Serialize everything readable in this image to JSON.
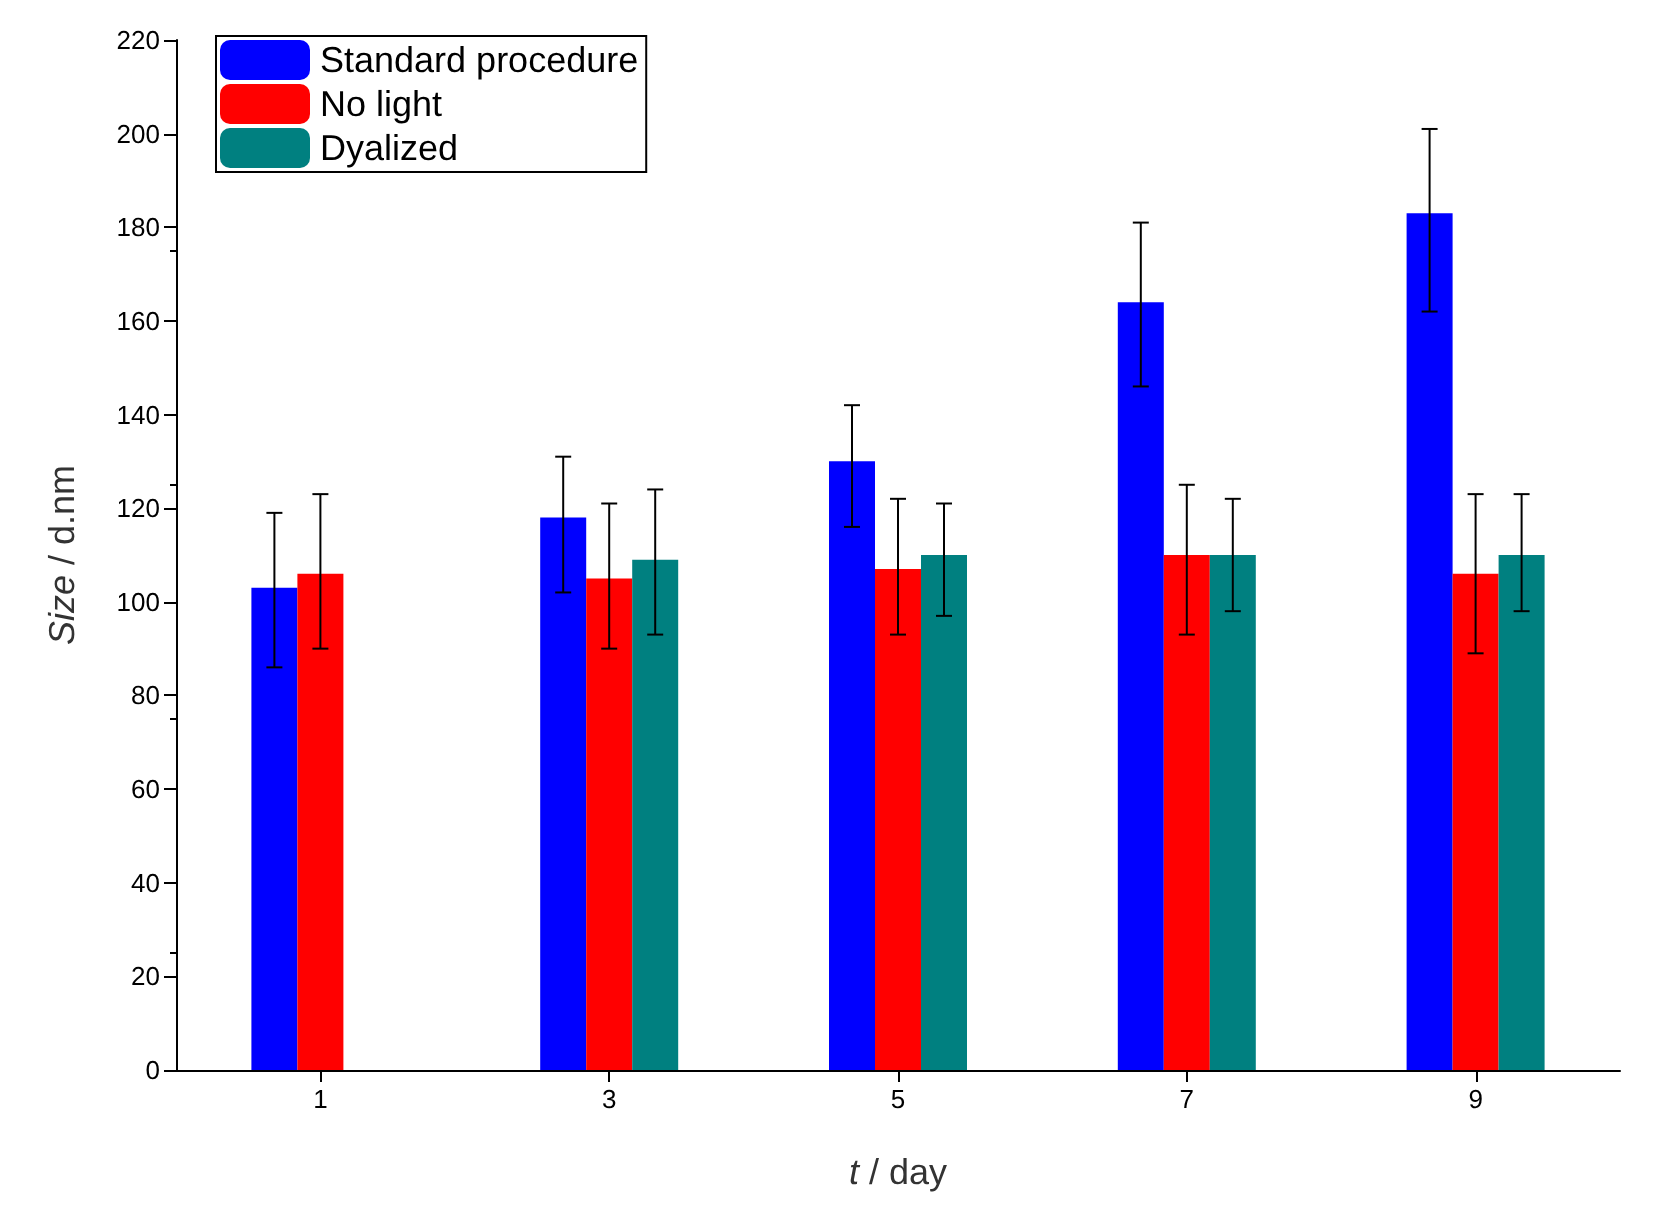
{
  "chart_data": {
    "type": "bar",
    "xlabel": "t / day",
    "ylabel": "Size / d.nm",
    "categories": [
      "1",
      "3",
      "5",
      "7",
      "9"
    ],
    "ylim": [
      0,
      220
    ],
    "yticks": [
      0,
      20,
      40,
      60,
      80,
      100,
      120,
      140,
      160,
      180,
      200,
      220
    ],
    "legend": "top left",
    "series": [
      {
        "name": "Standard procedure",
        "color": "#0000ff",
        "values": [
          103,
          118,
          130,
          164,
          183
        ],
        "errors": [
          [
            86,
            119
          ],
          [
            102,
            131
          ],
          [
            116,
            142
          ],
          [
            146,
            181
          ],
          [
            162,
            201
          ]
        ]
      },
      {
        "name": "No light",
        "color": "#ff0000",
        "values": [
          106,
          105,
          107,
          110,
          106
        ],
        "errors": [
          [
            90,
            123
          ],
          [
            90,
            121
          ],
          [
            93,
            122
          ],
          [
            93,
            125
          ],
          [
            89,
            123
          ]
        ]
      },
      {
        "name": "Dyalized",
        "color": "#008080",
        "values": [
          null,
          109,
          110,
          110,
          110
        ],
        "errors": [
          null,
          [
            93,
            124
          ],
          [
            97,
            121
          ],
          [
            98,
            122
          ],
          [
            98,
            123
          ]
        ]
      }
    ]
  }
}
